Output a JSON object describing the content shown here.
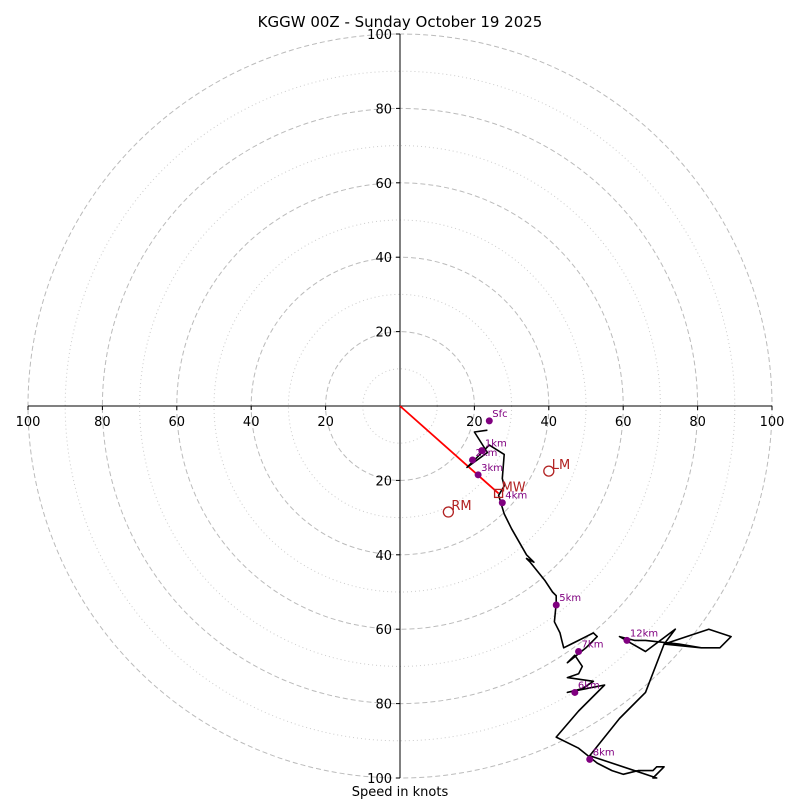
{
  "chart_data": {
    "type": "hodograph",
    "title": "KGGW 00Z - Sunday October 19 2025",
    "xlabel": "Speed in knots",
    "range": 100,
    "major_rings": [
      20,
      40,
      60,
      80,
      100
    ],
    "minor_rings": [
      10,
      30,
      50,
      70,
      90
    ],
    "x_tick_labels": [
      "100",
      "80",
      "60",
      "40",
      "20",
      "20",
      "40",
      "60",
      "80",
      "100"
    ],
    "x_tick_values": [
      -100,
      -80,
      -60,
      -40,
      -20,
      20,
      40,
      60,
      80,
      100
    ],
    "y_tick_labels": [
      "20",
      "40",
      "60",
      "80",
      "100"
    ],
    "y_tick_values": [
      20,
      40,
      60,
      80,
      100
    ],
    "wind_trace": [
      [
        23.5,
        6.5
      ],
      [
        20,
        7
      ],
      [
        23.5,
        12.5
      ],
      [
        18,
        16.5
      ],
      [
        24,
        10.5
      ],
      [
        28,
        13
      ],
      [
        27.5,
        19.5
      ],
      [
        28,
        21.5
      ],
      [
        26.5,
        24
      ],
      [
        28,
        29
      ],
      [
        30,
        33
      ],
      [
        34,
        40
      ],
      [
        36,
        42
      ],
      [
        34,
        41
      ],
      [
        35,
        42
      ],
      [
        39,
        47
      ],
      [
        41,
        50
      ],
      [
        42,
        51
      ],
      [
        42,
        53
      ],
      [
        41.5,
        58
      ],
      [
        43,
        61
      ],
      [
        43.5,
        63
      ],
      [
        44,
        65
      ],
      [
        46,
        64
      ],
      [
        48,
        63
      ],
      [
        52,
        61
      ],
      [
        53,
        62
      ],
      [
        50,
        65
      ],
      [
        45,
        69
      ],
      [
        47,
        67
      ],
      [
        49,
        70
      ],
      [
        48,
        72
      ],
      [
        45,
        73
      ],
      [
        52,
        74
      ],
      [
        49,
        76
      ],
      [
        45,
        77
      ],
      [
        50,
        76
      ],
      [
        55,
        75
      ],
      [
        48,
        82
      ],
      [
        42,
        89
      ],
      [
        48,
        92
      ],
      [
        53,
        96
      ],
      [
        57,
        98
      ],
      [
        60,
        99
      ],
      [
        64,
        98
      ],
      [
        68,
        98
      ],
      [
        69,
        97
      ],
      [
        71,
        97
      ],
      [
        68,
        100
      ],
      [
        69,
        100
      ],
      [
        51,
        94
      ],
      [
        59,
        84
      ],
      [
        66,
        77
      ],
      [
        71,
        64
      ],
      [
        74,
        60
      ],
      [
        66,
        66
      ],
      [
        59,
        62
      ],
      [
        63,
        63
      ],
      [
        66,
        63
      ],
      [
        75,
        64
      ],
      [
        81,
        65
      ],
      [
        86,
        65
      ],
      [
        89,
        62
      ],
      [
        83,
        60
      ],
      [
        71,
        64
      ],
      [
        81,
        65
      ]
    ],
    "height_markers": [
      {
        "label": "Sfc",
        "u": 24,
        "v": 4
      },
      {
        "label": "1km",
        "u": 22,
        "v": 12
      },
      {
        "label": "2km",
        "u": 19.5,
        "v": 14.5
      },
      {
        "label": "3km",
        "u": 21,
        "v": 18.5
      },
      {
        "label": "4km",
        "u": 27.5,
        "v": 26
      },
      {
        "label": "5km",
        "u": 42,
        "v": 53.5
      },
      {
        "label": "6km",
        "u": 47,
        "v": 77
      },
      {
        "label": "7km",
        "u": 48,
        "v": 66
      },
      {
        "label": "8km",
        "u": 51,
        "v": 95
      },
      {
        "label": "12km",
        "u": 61,
        "v": 63
      }
    ],
    "storm_motion_vectors": [
      {
        "label": "RM",
        "u": 13,
        "v": 28.5,
        "style": "ring"
      },
      {
        "label": "LM",
        "u": 40,
        "v": 17.5,
        "style": "ring"
      },
      {
        "label": "MW",
        "u": 26.5,
        "v": 23.5,
        "style": "square"
      }
    ],
    "shear_vector": {
      "from": [
        0,
        0
      ],
      "to": [
        26.5,
        23.5
      ]
    },
    "colors": {
      "trace": "#000000",
      "markers": "#800080",
      "storm_motion": "#b22222",
      "shear": "#ff0000",
      "grid": "#bbbbbb",
      "axes": "#000000"
    }
  }
}
